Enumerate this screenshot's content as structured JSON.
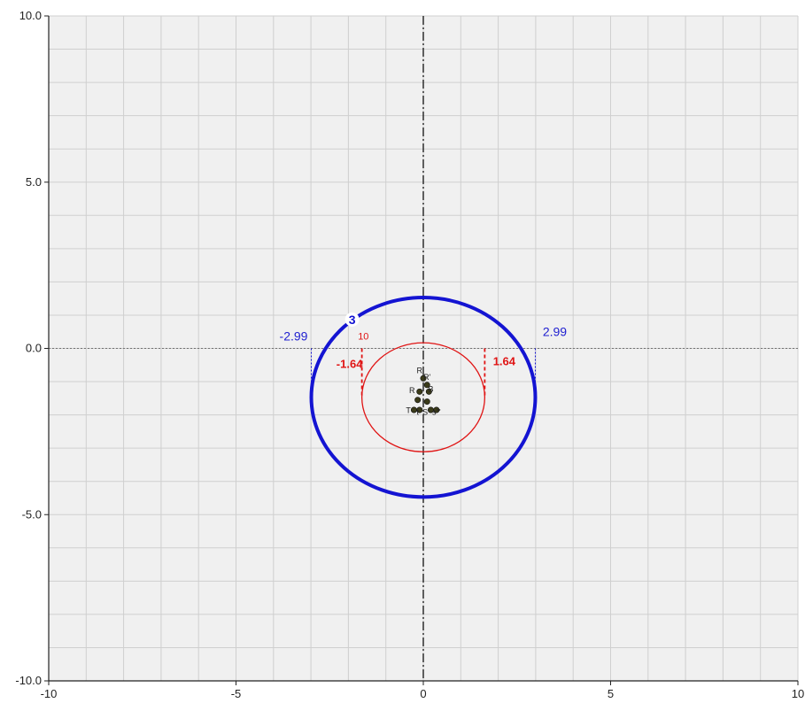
{
  "chart_data": {
    "type": "scatter",
    "title": "",
    "xlabel": "",
    "ylabel": "",
    "xlim": [
      -10,
      10
    ],
    "ylim": [
      -10,
      10
    ],
    "x_ticks": [
      -10,
      -5,
      0,
      5,
      10
    ],
    "y_ticks": [
      -10,
      -5,
      0,
      5,
      10
    ],
    "x_tick_labels": [
      "-10",
      "-5",
      "0",
      "5",
      "10"
    ],
    "y_tick_labels": [
      "-10.0",
      "-5.0",
      "0.0",
      "5.0",
      "10.0"
    ],
    "grid": true,
    "ellipses": [
      {
        "id": "outer",
        "label": "3",
        "center": [
          0,
          -1.47
        ],
        "rx": 2.99,
        "ry": 3.0,
        "color": "#1414d2",
        "dim_left_label": "-2.99",
        "dim_right_label": "2.99",
        "dim_left": -2.99,
        "dim_right": 2.99
      },
      {
        "id": "inner",
        "label": "10",
        "center": [
          0,
          -1.47
        ],
        "rx": 1.64,
        "ry": 1.64,
        "color": "#e01414",
        "dim_left_label": "-1.64",
        "dim_right_label": "1.64",
        "dim_left": -1.64,
        "dim_right": 1.64
      }
    ],
    "points": [
      {
        "label": "R",
        "x": 0.0,
        "y": -0.9
      },
      {
        "label": "R'",
        "x": 0.1,
        "y": -1.1
      },
      {
        "label": "R''",
        "x": 0.15,
        "y": -1.3
      },
      {
        "label": "R'''",
        "x": -0.1,
        "y": -1.3
      },
      {
        "label": "S",
        "x": 0.1,
        "y": -1.6
      },
      {
        "label": "S'",
        "x": -0.15,
        "y": -1.55
      },
      {
        "label": "T",
        "x": -0.25,
        "y": -1.85
      },
      {
        "label": "T'",
        "x": -0.1,
        "y": -1.85
      },
      {
        "label": "S''",
        "x": 0.2,
        "y": -1.85
      },
      {
        "label": "s'''",
        "x": 0.35,
        "y": -1.85
      }
    ],
    "point_texts": [
      "R",
      "R'",
      "R",
      "B",
      "T",
      "t",
      "S",
      "s'''"
    ]
  },
  "colors": {
    "background": "#f0f0f0",
    "grid": "#cfcfcf",
    "axis": "#222222",
    "outer_ellipse": "#1414d2",
    "inner_ellipse": "#e01414"
  }
}
